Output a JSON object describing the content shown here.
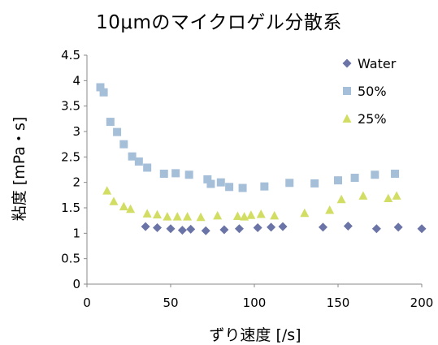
{
  "chart_data": {
    "type": "scatter",
    "title": "10μmのマイクロゲル分散系",
    "xlabel": "ずり速度 [/s]",
    "ylabel": "粘度 [mPa・s]",
    "xlim": [
      0,
      200
    ],
    "ylim": [
      0,
      4.5
    ],
    "x_ticks": [
      "0",
      "50",
      "100",
      "150",
      "200"
    ],
    "y_ticks": [
      "0",
      "0.5",
      "1",
      "1.5",
      "2",
      "2.5",
      "3",
      "3.5",
      "4",
      "4.5"
    ],
    "grid": false,
    "legend_position": "top-right",
    "series": [
      {
        "name": "Water",
        "marker": "diamond",
        "color": "#6b74a6",
        "points": [
          [
            35,
            1.13
          ],
          [
            42,
            1.11
          ],
          [
            50,
            1.09
          ],
          [
            57,
            1.06
          ],
          [
            62,
            1.08
          ],
          [
            71,
            1.05
          ],
          [
            82,
            1.07
          ],
          [
            91,
            1.09
          ],
          [
            102,
            1.11
          ],
          [
            110,
            1.12
          ],
          [
            117,
            1.13
          ],
          [
            141,
            1.12
          ],
          [
            156,
            1.14
          ],
          [
            173,
            1.09
          ],
          [
            186,
            1.12
          ],
          [
            200,
            1.09
          ]
        ]
      },
      {
        "name": "50%",
        "marker": "square",
        "color": "#a6bfd9",
        "points": [
          [
            8,
            3.87
          ],
          [
            10,
            3.77
          ],
          [
            14,
            3.19
          ],
          [
            18,
            2.99
          ],
          [
            22,
            2.75
          ],
          [
            27,
            2.51
          ],
          [
            31,
            2.41
          ],
          [
            36,
            2.29
          ],
          [
            46,
            2.17
          ],
          [
            53,
            2.18
          ],
          [
            61,
            2.15
          ],
          [
            72,
            2.06
          ],
          [
            74,
            1.97
          ],
          [
            80,
            2.0
          ],
          [
            85,
            1.91
          ],
          [
            93,
            1.89
          ],
          [
            106,
            1.92
          ],
          [
            121,
            1.99
          ],
          [
            136,
            1.98
          ],
          [
            150,
            2.04
          ],
          [
            160,
            2.09
          ],
          [
            172,
            2.15
          ],
          [
            184,
            2.17
          ]
        ]
      },
      {
        "name": "25%",
        "marker": "triangle",
        "color": "#d2dd63",
        "points": [
          [
            12,
            1.84
          ],
          [
            16,
            1.63
          ],
          [
            22,
            1.53
          ],
          [
            26,
            1.48
          ],
          [
            36,
            1.39
          ],
          [
            42,
            1.37
          ],
          [
            48,
            1.33
          ],
          [
            54,
            1.33
          ],
          [
            60,
            1.33
          ],
          [
            68,
            1.32
          ],
          [
            78,
            1.35
          ],
          [
            90,
            1.34
          ],
          [
            94,
            1.33
          ],
          [
            98,
            1.36
          ],
          [
            104,
            1.38
          ],
          [
            112,
            1.35
          ],
          [
            130,
            1.4
          ],
          [
            145,
            1.46
          ],
          [
            152,
            1.67
          ],
          [
            165,
            1.74
          ],
          [
            180,
            1.69
          ],
          [
            185,
            1.74
          ]
        ]
      }
    ]
  }
}
